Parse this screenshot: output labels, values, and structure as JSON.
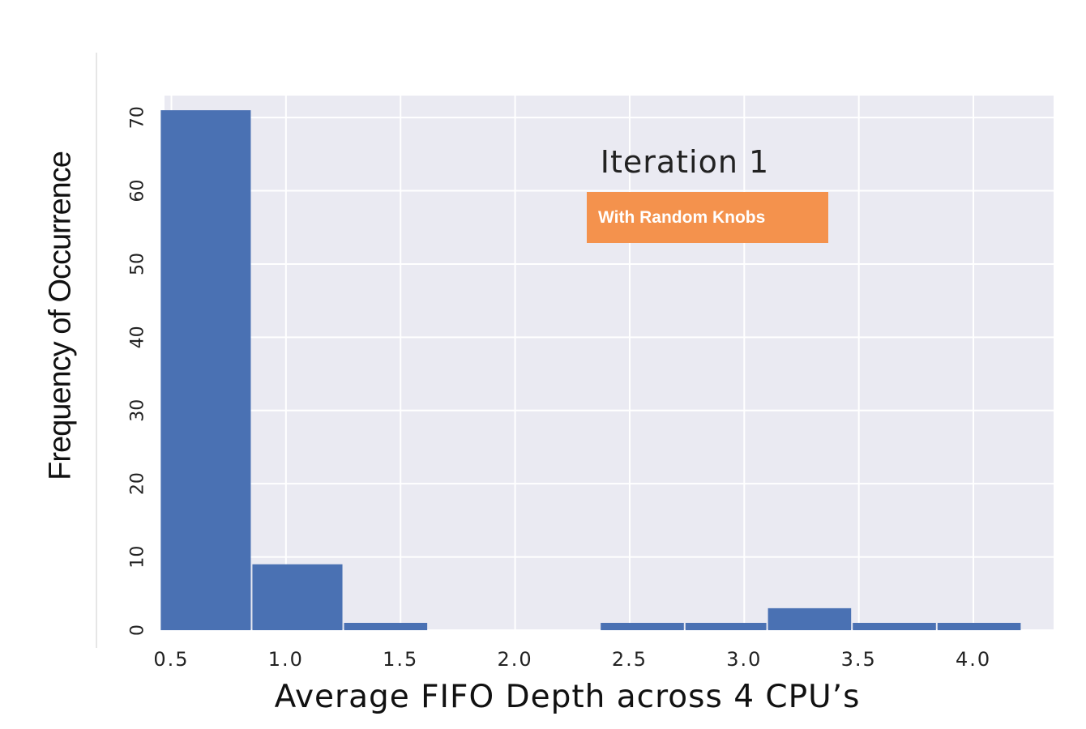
{
  "chart_data": {
    "type": "bar",
    "title": "Iteration 1",
    "annotation": "With Random Knobs",
    "xlabel": "Average FIFO Depth across 4 CPU’s",
    "ylabel": "Frequency of Occurrence",
    "x_ticks": [
      "0.5",
      "1.0",
      "1.5",
      "2.0",
      "2.5",
      "3.0",
      "3.5",
      "4.0"
    ],
    "x_tick_values": [
      0.5,
      1.0,
      1.5,
      2.0,
      2.5,
      3.0,
      3.5,
      4.0
    ],
    "y_ticks": [
      "0",
      "10",
      "20",
      "30",
      "40",
      "50",
      "60",
      "70"
    ],
    "y_tick_values": [
      0,
      10,
      20,
      30,
      40,
      50,
      60,
      70
    ],
    "xlim": [
      0.47,
      4.35
    ],
    "ylim": [
      0,
      73
    ],
    "grid": true,
    "bar_color": "#4a71b3",
    "background_color": "#eaeaf2",
    "bins": [
      {
        "x0": 0.45,
        "x1": 0.85,
        "value": 71
      },
      {
        "x0": 0.85,
        "x1": 1.25,
        "value": 9
      },
      {
        "x0": 1.25,
        "x1": 1.62,
        "value": 1
      },
      {
        "x0": 1.62,
        "x1": 2.0,
        "value": 0
      },
      {
        "x0": 2.0,
        "x1": 2.37,
        "value": 0
      },
      {
        "x0": 2.37,
        "x1": 2.74,
        "value": 1
      },
      {
        "x0": 2.74,
        "x1": 3.1,
        "value": 1
      },
      {
        "x0": 3.1,
        "x1": 3.47,
        "value": 3
      },
      {
        "x0": 3.47,
        "x1": 3.84,
        "value": 1
      },
      {
        "x0": 3.84,
        "x1": 4.21,
        "value": 1
      }
    ]
  }
}
